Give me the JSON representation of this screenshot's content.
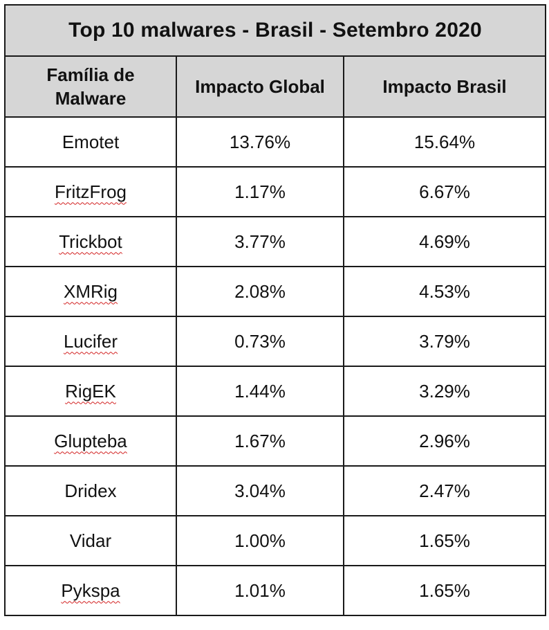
{
  "table": {
    "title": "Top 10 malwares - Brasil - Setembro 2020",
    "headers": {
      "family_line1": "Família de",
      "family_line2": "Malware",
      "global": "Impacto Global",
      "brasil": "Impacto Brasil"
    },
    "rows": [
      {
        "family": "Emotet",
        "global": "13.76%",
        "brasil": "15.64%"
      },
      {
        "family": "FritzFrog",
        "global": "1.17%",
        "brasil": "6.67%"
      },
      {
        "family": "Trickbot",
        "global": "3.77%",
        "brasil": "4.69%"
      },
      {
        "family": "XMRig",
        "global": "2.08%",
        "brasil": "4.53%"
      },
      {
        "family": "Lucifer",
        "global": "0.73%",
        "brasil": "3.79%"
      },
      {
        "family": "RigEK",
        "global": "1.44%",
        "brasil": "3.29%"
      },
      {
        "family": "Glupteba",
        "global": "1.67%",
        "brasil": "2.96%"
      },
      {
        "family": "Dridex",
        "global": "3.04%",
        "brasil": "2.47%"
      },
      {
        "family": "Vidar",
        "global": "1.00%",
        "brasil": "1.65%"
      },
      {
        "family": "Pykspa",
        "global": "1.01%",
        "brasil": "1.65%"
      }
    ]
  },
  "colors": {
    "header_bg": "#d6d6d6",
    "border": "#1a1a1a",
    "spellcheck_underline": "#d21f1f"
  }
}
